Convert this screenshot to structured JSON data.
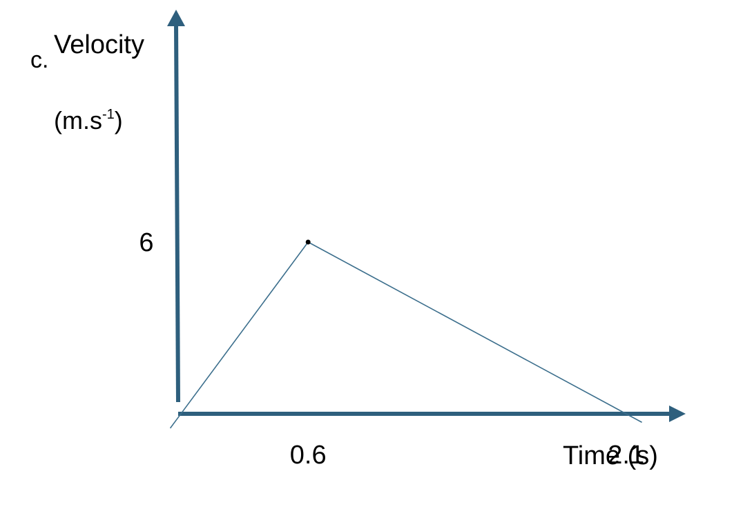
{
  "chart_data": {
    "type": "line",
    "question_label": "c.",
    "ylabel": "Velocity",
    "ylabel_unit_base": "(m.s",
    "ylabel_unit_sup": "-1",
    "ylabel_unit_end": ")",
    "xlabel": "Time (s)",
    "y_ticks": [
      {
        "value": 6,
        "label": "6"
      }
    ],
    "x_ticks": [
      {
        "value": 0.6,
        "label": "0.6"
      },
      {
        "value": 2.1,
        "label": "2.1"
      }
    ],
    "series": [
      {
        "points": [
          {
            "x": 0,
            "y": 0
          },
          {
            "x": 0.6,
            "y": 6
          },
          {
            "x": 2.1,
            "y": 0
          }
        ]
      }
    ],
    "colors": {
      "axis": "#2e5f7d",
      "line": "#3b6e8c",
      "marker": "#000000"
    }
  }
}
